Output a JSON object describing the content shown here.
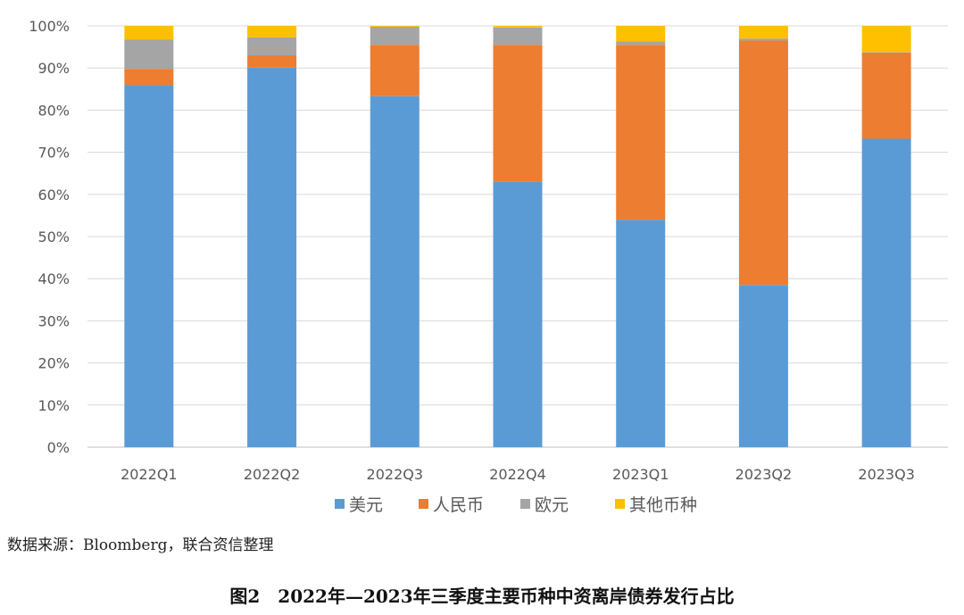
{
  "chart_data": {
    "type": "bar",
    "stacked": true,
    "categories": [
      "2022Q1",
      "2022Q2",
      "2022Q3",
      "2022Q4",
      "2023Q1",
      "2023Q2",
      "2023Q3"
    ],
    "series": [
      {
        "name": "美元",
        "color": "#5B9BD5",
        "values": [
          86,
          90.2,
          83.3,
          63,
          54,
          38.5,
          73.2
        ]
      },
      {
        "name": "人民币",
        "color": "#ED7D31",
        "values": [
          3.8,
          2.8,
          12.2,
          32.5,
          41.5,
          58,
          20.5
        ]
      },
      {
        "name": "欧元",
        "color": "#A5A5A5",
        "values": [
          7,
          4.3,
          4.3,
          4.1,
          0.8,
          0.5,
          0.1
        ]
      },
      {
        "name": "其他币种",
        "color": "#FFC000",
        "values": [
          3.2,
          2.7,
          0.2,
          0.4,
          3.7,
          3,
          6.2
        ]
      }
    ],
    "yticks": [
      "0%",
      "10%",
      "20%",
      "30%",
      "40%",
      "50%",
      "60%",
      "70%",
      "80%",
      "90%",
      "100%"
    ],
    "ylim": [
      0,
      100
    ],
    "grid": true,
    "legend": "bottom"
  },
  "source_note": "数据来源：Bloomberg，联合资信整理",
  "caption": "图2　2022年—2023年三季度主要币种中资离岸债券发行占比"
}
